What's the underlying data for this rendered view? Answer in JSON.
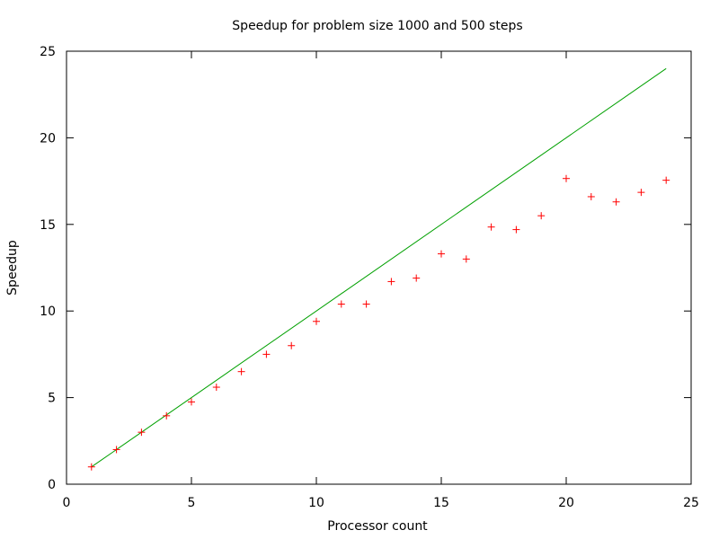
{
  "chart_data": {
    "type": "scatter",
    "title": "Speedup for problem size 1000 and 500 steps",
    "xlabel": "Processor count",
    "ylabel": "Speedup",
    "xlim": [
      0,
      25
    ],
    "ylim": [
      0,
      25
    ],
    "xticks": [
      0,
      5,
      10,
      15,
      20,
      25
    ],
    "yticks": [
      0,
      5,
      10,
      15,
      20,
      25
    ],
    "grid": false,
    "legend": "none",
    "series": [
      {
        "type": "line",
        "color": "#00a000",
        "x": [
          1,
          24
        ],
        "y": [
          1,
          24
        ]
      },
      {
        "type": "scatter",
        "marker": "plus",
        "color": "#ff0000",
        "x": [
          1,
          2,
          3,
          4,
          5,
          6,
          7,
          8,
          9,
          10,
          11,
          12,
          13,
          14,
          15,
          16,
          17,
          18,
          19,
          20,
          21,
          22,
          23,
          24
        ],
        "y": [
          1.0,
          2.0,
          3.0,
          3.95,
          4.75,
          5.6,
          6.5,
          7.5,
          8.0,
          9.4,
          10.4,
          10.4,
          11.7,
          11.9,
          13.3,
          13.0,
          14.85,
          14.7,
          15.5,
          17.65,
          16.6,
          16.3,
          16.85,
          17.55
        ]
      }
    ]
  }
}
